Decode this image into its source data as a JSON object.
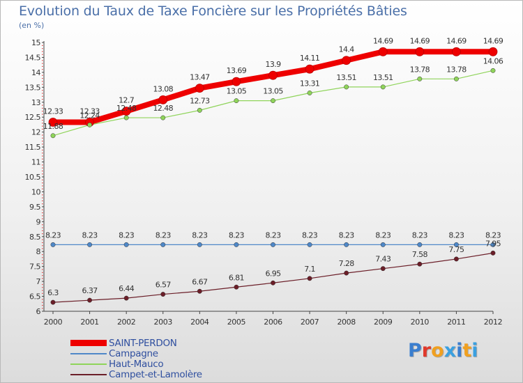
{
  "title": "Evolution du Taux de Taxe Foncière sur les Propriétés Bâties",
  "unit_label": "(en %)",
  "brand": {
    "text": "Proxiti",
    "letter_colors": [
      "#3a7ecf",
      "#e0392b",
      "#f0a020",
      "#3aa0e0",
      "#3a7ecf",
      "#f0a020",
      "#3aa0e0"
    ]
  },
  "chart_data": {
    "type": "line",
    "title": "Evolution du Taux de Taxe Foncière sur les Propriétés Bâties",
    "ylabel": "(en %)",
    "ylim": [
      6,
      15
    ],
    "yticks": [
      "6",
      "6.5",
      "7",
      "7.5",
      "8",
      "8.5",
      "9",
      "9.5",
      "10",
      "10.5",
      "11",
      "11.5",
      "12",
      "12.5",
      "13",
      "13.5",
      "14",
      "14.5",
      "15"
    ],
    "x": [
      "2000",
      "2001",
      "2002",
      "2003",
      "2004",
      "2005",
      "2006",
      "2007",
      "2008",
      "2009",
      "2010",
      "2011",
      "2012"
    ],
    "grid": false,
    "legend_position": "bottom-left",
    "series": [
      {
        "name": "SAINT-PERDON",
        "color": "#ee0000",
        "values": [
          12.33,
          12.33,
          12.7,
          13.08,
          13.47,
          13.69,
          13.9,
          14.11,
          14.4,
          14.69,
          14.69,
          14.69,
          14.69
        ],
        "labels": [
          "12.33",
          "12.33",
          "12.7",
          "13.08",
          "13.47",
          "13.69",
          "13.9",
          "14.11",
          "14.4",
          "14.69",
          "14.69",
          "14.69",
          "14.69"
        ]
      },
      {
        "name": "Campagne",
        "color": "#4f88c8",
        "values": [
          8.23,
          8.23,
          8.23,
          8.23,
          8.23,
          8.23,
          8.23,
          8.23,
          8.23,
          8.23,
          8.23,
          8.23,
          8.23
        ],
        "labels": [
          "8.23",
          "8.23",
          "8.23",
          "8.23",
          "8.23",
          "8.23",
          "8.23",
          "8.23",
          "8.23",
          "8.23",
          "8.23",
          "8.23",
          "8.23"
        ]
      },
      {
        "name": "Haut-Mauco",
        "color": "#8fd45a",
        "values": [
          11.88,
          12.24,
          12.48,
          12.48,
          12.73,
          13.05,
          13.05,
          13.31,
          13.51,
          13.51,
          13.78,
          13.78,
          14.06
        ],
        "labels": [
          "11.88",
          "12.24",
          "12.48",
          "12.48",
          "12.73",
          "13.05",
          "13.05",
          "13.31",
          "13.51",
          "13.51",
          "13.78",
          "13.78",
          "14.06"
        ]
      },
      {
        "name": "Campet-et-Lamolère",
        "color": "#6b1e28",
        "values": [
          6.3,
          6.37,
          6.44,
          6.57,
          6.67,
          6.81,
          6.95,
          7.1,
          7.28,
          7.43,
          7.58,
          7.75,
          7.95
        ],
        "labels": [
          "6.3",
          "6.37",
          "6.44",
          "6.57",
          "6.67",
          "6.81",
          "6.95",
          "7.1",
          "7.28",
          "7.43",
          "7.58",
          "7.75",
          "7.95"
        ]
      }
    ]
  }
}
